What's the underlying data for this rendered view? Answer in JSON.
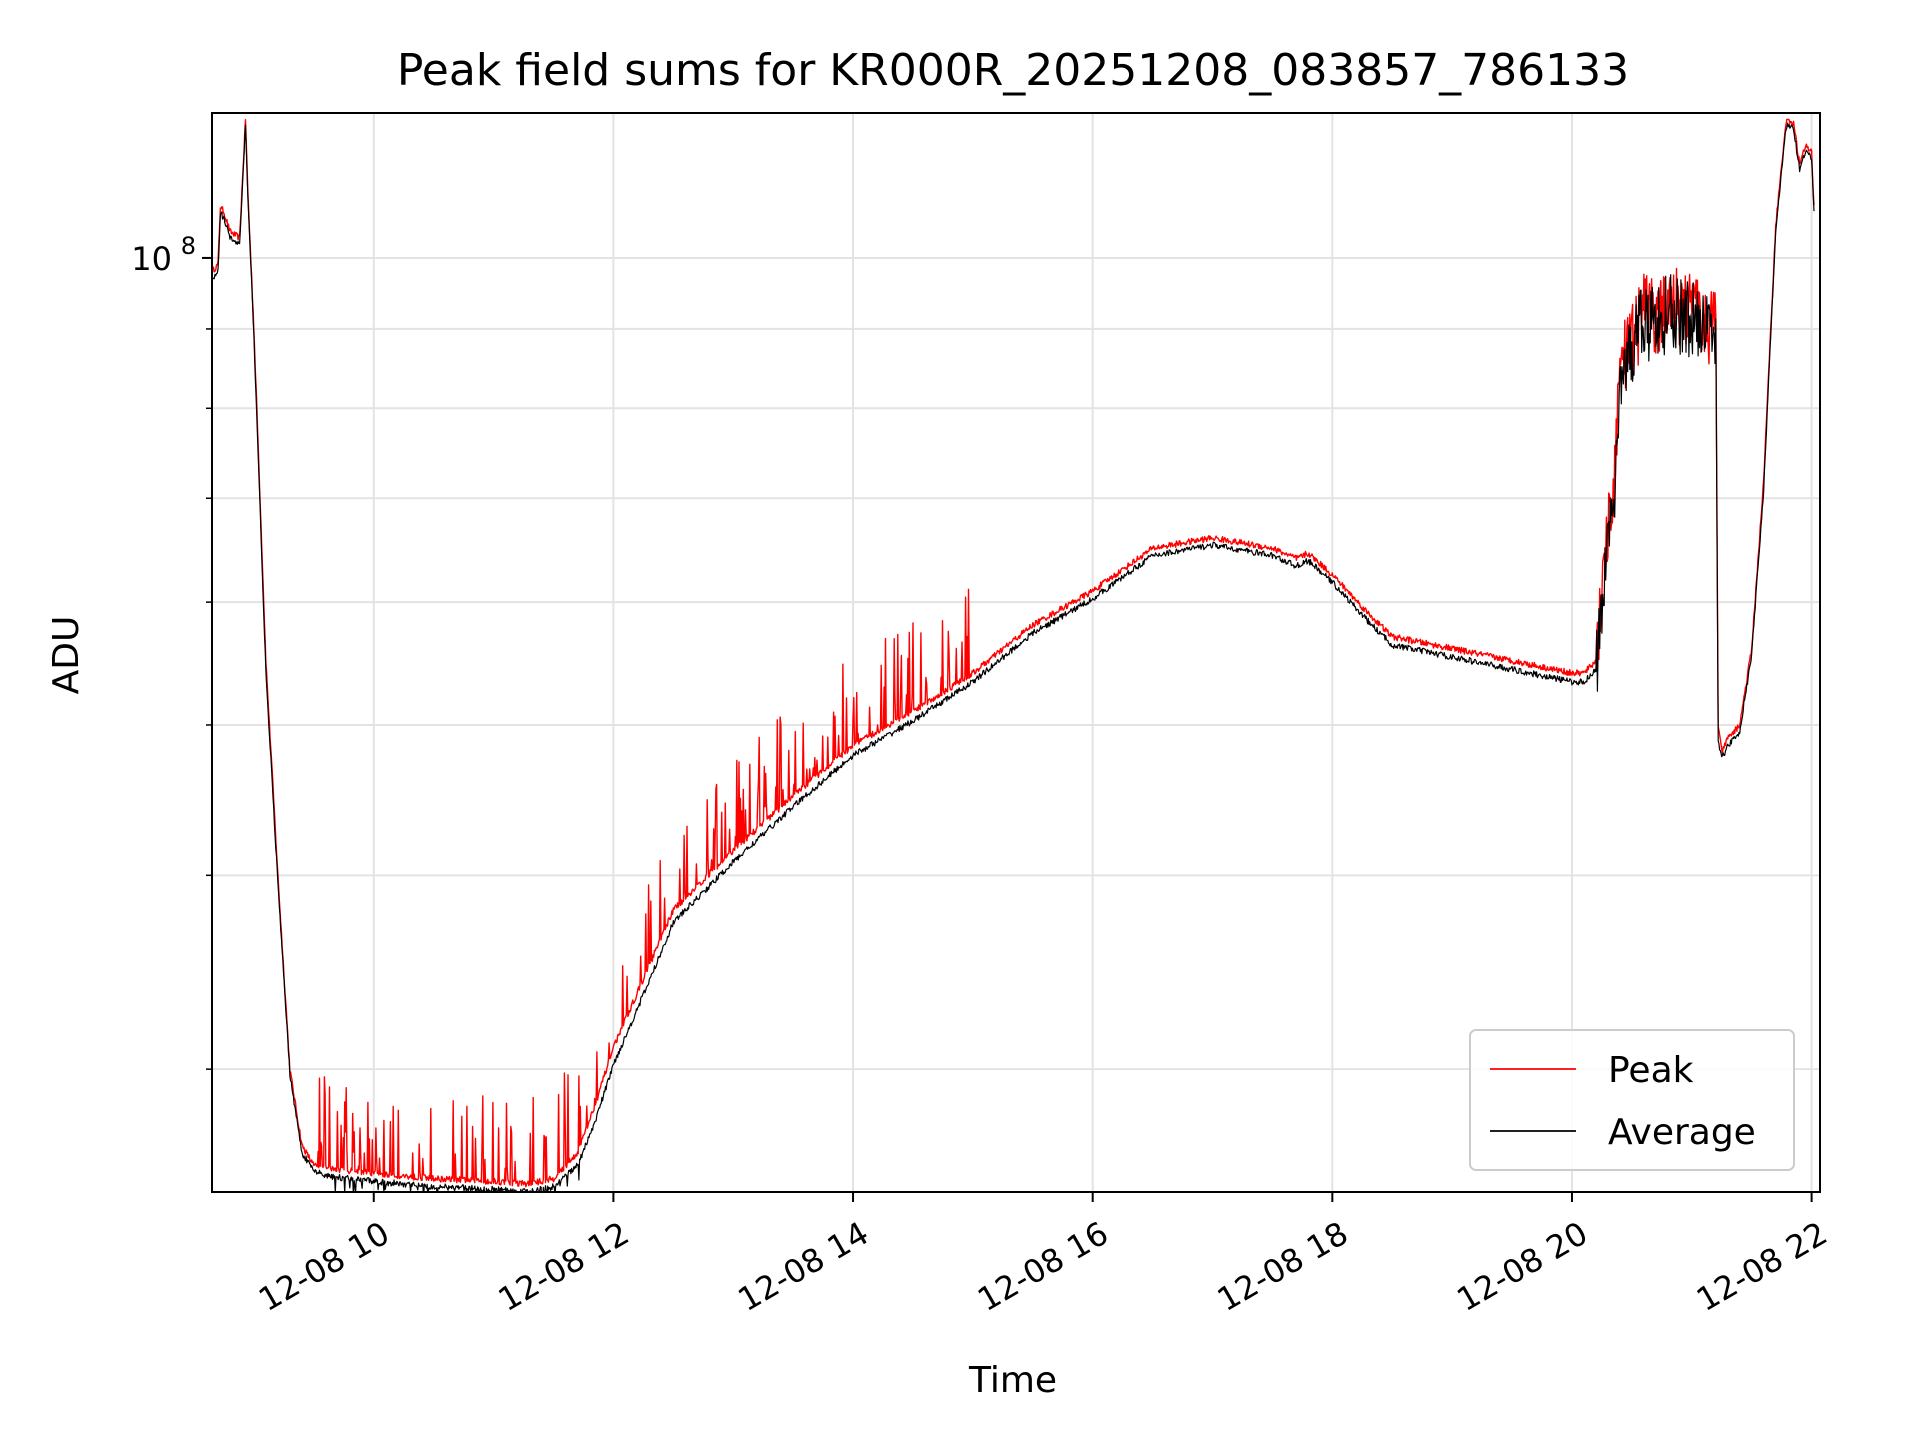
{
  "chart_data": {
    "type": "line",
    "title": "Peak field sums for KR000R_20251208_083857_786133",
    "xlabel": "Time",
    "ylabel": "ADU",
    "yscale": "log",
    "grid": true,
    "legend_position": "lower-right",
    "x_unit": "hours since 2025-12-08 00:00",
    "xlim": [
      8.65,
      22.07
    ],
    "ylim": [
      25000000,
      124000000
    ],
    "x_ticks": [
      {
        "value": 10,
        "label": "12-08 10"
      },
      {
        "value": 12,
        "label": "12-08 12"
      },
      {
        "value": 14,
        "label": "12-08 14"
      },
      {
        "value": 16,
        "label": "12-08 16"
      },
      {
        "value": 18,
        "label": "12-08 18"
      },
      {
        "value": 20,
        "label": "12-08 20"
      },
      {
        "value": 22,
        "label": "12-08 22"
      }
    ],
    "y_major_ticks": [
      {
        "value": 100000000,
        "base": "10",
        "exp": "8"
      }
    ],
    "y_minor_ticks": [
      30000000,
      40000000,
      50000000,
      60000000,
      70000000,
      80000000,
      90000000
    ],
    "series": [
      {
        "name": "Peak",
        "color": "#ff0000",
        "x": [
          8.65,
          8.7,
          8.72,
          8.75,
          8.8,
          8.88,
          8.93,
          8.95,
          9.0,
          9.1,
          9.2,
          9.3,
          9.4,
          9.5,
          9.6,
          9.8,
          10.0,
          10.5,
          11.0,
          11.3,
          11.5,
          11.7,
          11.85,
          12.0,
          12.3,
          12.5,
          13.0,
          13.5,
          14.0,
          14.5,
          15.0,
          15.5,
          16.0,
          16.5,
          17.0,
          17.5,
          17.7,
          17.8,
          18.0,
          18.3,
          18.5,
          19.0,
          19.5,
          20.0,
          20.1,
          20.2,
          20.25,
          20.3,
          20.35,
          20.4,
          20.5,
          20.6,
          20.7,
          20.8,
          21.0,
          21.1,
          21.15,
          21.2,
          21.22,
          21.25,
          21.3,
          21.4,
          21.5,
          21.6,
          21.7,
          21.78,
          21.8,
          21.85,
          21.9,
          21.95,
          22.0,
          22.02
        ],
        "y": [
          98000000,
          99000000,
          108000000,
          107000000,
          104000000,
          103000000,
          123000000,
          110000000,
          90000000,
          55000000,
          40000000,
          30000000,
          26800000,
          26000000,
          25900000,
          25800000,
          25700000,
          25500000,
          25400000,
          25300000,
          25500000,
          26500000,
          28500000,
          31000000,
          35000000,
          38000000,
          41500000,
          45000000,
          48500000,
          51000000,
          54000000,
          58000000,
          61000000,
          65000000,
          66000000,
          65000000,
          64000000,
          64500000,
          62500000,
          59000000,
          57000000,
          56000000,
          55000000,
          54000000,
          54000000,
          55000000,
          60000000,
          66000000,
          71000000,
          85000000,
          88000000,
          93000000,
          91000000,
          93500000,
          92500000,
          92000000,
          90000000,
          92000000,
          50000000,
          48000000,
          49000000,
          50000000,
          56000000,
          72000000,
          105000000,
          121000000,
          123000000,
          122000000,
          115000000,
          118000000,
          117000000,
          108000000
        ]
      },
      {
        "name": "Average",
        "color": "#000000",
        "x": [
          8.65,
          8.7,
          8.72,
          8.75,
          8.8,
          8.88,
          8.93,
          8.95,
          9.0,
          9.1,
          9.2,
          9.3,
          9.4,
          9.5,
          9.6,
          9.8,
          10.0,
          10.5,
          11.0,
          11.3,
          11.5,
          11.7,
          11.85,
          12.0,
          12.3,
          12.5,
          13.0,
          13.5,
          14.0,
          14.5,
          15.0,
          15.5,
          16.0,
          16.5,
          17.0,
          17.5,
          17.7,
          17.8,
          18.0,
          18.3,
          18.5,
          19.0,
          19.5,
          20.0,
          20.1,
          20.2,
          20.25,
          20.3,
          20.35,
          20.4,
          20.5,
          20.6,
          20.7,
          20.8,
          21.0,
          21.1,
          21.15,
          21.2,
          21.22,
          21.25,
          21.3,
          21.4,
          21.5,
          21.6,
          21.7,
          21.78,
          21.8,
          21.85,
          21.9,
          21.95,
          22.0,
          22.02
        ],
        "y": [
          97000000,
          98000000,
          107000000,
          106000000,
          103000000,
          102000000,
          122000000,
          109000000,
          89000000,
          54000000,
          39500000,
          29800000,
          26500000,
          25800000,
          25600000,
          25500000,
          25400000,
          25200000,
          25100000,
          25000000,
          25200000,
          26000000,
          27800000,
          30200000,
          34200000,
          37300000,
          40800000,
          44300000,
          47800000,
          50300000,
          53300000,
          57300000,
          60300000,
          64300000,
          65300000,
          64300000,
          63300000,
          63800000,
          61800000,
          58300000,
          56300000,
          55300000,
          54300000,
          53300000,
          53300000,
          54300000,
          59000000,
          65000000,
          70000000,
          84000000,
          87000000,
          92000000,
          90000000,
          92500000,
          91500000,
          91000000,
          89000000,
          91000000,
          49000000,
          47500000,
          48500000,
          49500000,
          55500000,
          71000000,
          104000000,
          120000000,
          122000000,
          121000000,
          114000000,
          117000000,
          116000000,
          107000000
        ]
      }
    ]
  }
}
